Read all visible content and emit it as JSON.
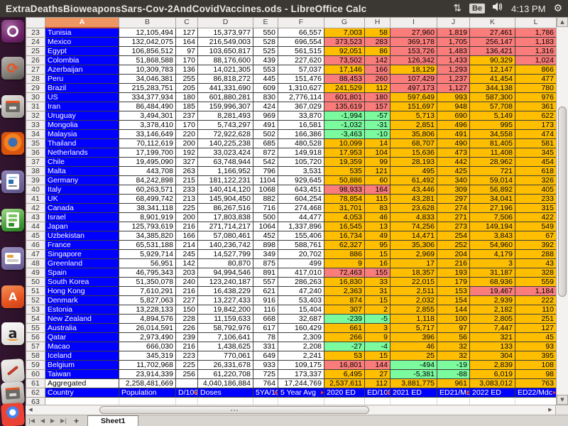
{
  "top_panel": {
    "title": "ExtraDeathsBioweaponsSars-Cov-2AndCovidVaccines.ods - LibreOffice Calc",
    "sync_arrows": "⇅",
    "keyboard_badge": "Be",
    "time": "4:13 PM",
    "session_gear": "⚙"
  },
  "launcher": {
    "items": [
      {
        "name": "ubuntu-dash"
      },
      {
        "name": "software-updater"
      },
      {
        "name": "file-manager",
        "running": true
      },
      {
        "name": "firefox"
      },
      {
        "name": "libreoffice-writer",
        "running": true
      },
      {
        "name": "libreoffice-calc",
        "running": true,
        "active": true
      },
      {
        "name": "libreoffice-impress"
      },
      {
        "name": "ubuntu-software-center"
      },
      {
        "name": "amazon"
      },
      {
        "name": "document-annotate"
      },
      {
        "name": "calculator"
      },
      {
        "name": "chrome"
      }
    ]
  },
  "colors": {
    "country_blue": "#0000FF",
    "warn_yellow": "#FFBF00",
    "alert_red": "#FB7D7B",
    "ok_green": "#7BFA9E",
    "selected_col_header": "#EE9663"
  },
  "sheet": {
    "selected_column": "A",
    "columns": [
      "A",
      "B",
      "C",
      "D",
      "E",
      "F",
      "G",
      "H",
      "I",
      "J",
      "K",
      "L"
    ],
    "rows": [
      {
        "n": "23",
        "colors": "bwwwwwyyrrrr",
        "cells": [
          "Tunisia",
          "12,105,494",
          "127",
          "15,373,977",
          "550",
          "66,557",
          "7,003",
          "58",
          "27,960",
          "1,819",
          "27,461",
          "1,786"
        ]
      },
      {
        "n": "24",
        "colors": "bwwwwwrrrrrr",
        "cells": [
          "Mexico",
          "132,042,075",
          "164",
          "216,549,003",
          "528",
          "696,554",
          "373,523",
          "283",
          "369,178",
          "1,705",
          "256,147",
          "1,183"
        ]
      },
      {
        "n": "25",
        "colors": "bwwwwwyyrrrr",
        "cells": [
          "Egypt",
          "106,856,512",
          "97",
          "103,650,817",
          "525",
          "561,515",
          "92,051",
          "86",
          "153,726",
          "1,483",
          "136,421",
          "1,316"
        ]
      },
      {
        "n": "26",
        "colors": "bwwwwwrrrryr",
        "cells": [
          "Colombia",
          "51,868,588",
          "170",
          "88,176,600",
          "439",
          "227,620",
          "73,502",
          "142",
          "126,342",
          "1,433",
          "90,329",
          "1,024"
        ]
      },
      {
        "n": "27",
        "colors": "bwwwwwyryryy",
        "cells": [
          "Azerbaijan",
          "10,309,783",
          "136",
          "14,021,305",
          "553",
          "57,037",
          "17,146",
          "166",
          "18,129",
          "1,293",
          "12,147",
          "866"
        ]
      },
      {
        "n": "28",
        "colors": "bwwwwwrrrryy",
        "cells": [
          "Peru",
          "34,046,381",
          "255",
          "86,818,272",
          "445",
          "151,476",
          "88,453",
          "260",
          "107,429",
          "1,237",
          "41,454",
          "477"
        ]
      },
      {
        "n": "29",
        "colors": "bwwwwwyyrryy",
        "cells": [
          "Brazil",
          "215,283,751",
          "205",
          "441,331,690",
          "609",
          "1,310,627",
          "241,529",
          "112",
          "497,173",
          "1,127",
          "344,138",
          "780"
        ]
      },
      {
        "n": "30",
        "colors": "bwwwwwrryyyy",
        "cells": [
          "US",
          "334,377,934",
          "180",
          "601,880,281",
          "830",
          "2,776,114",
          "601,801",
          "180",
          "597,649",
          "993",
          "587,300",
          "976"
        ]
      },
      {
        "n": "31",
        "colors": "bwwwwwrryyyy",
        "cells": [
          "Iran",
          "86,484,490",
          "185",
          "159,996,307",
          "424",
          "367,029",
          "135,619",
          "157",
          "151,697",
          "948",
          "57,708",
          "361"
        ]
      },
      {
        "n": "32",
        "colors": "bwwwwwggyyyy",
        "cells": [
          "Uruguay",
          "3,494,301",
          "237",
          "8,281,493",
          "969",
          "33,870",
          "-1,994",
          "-57",
          "5,713",
          "690",
          "5,149",
          "622"
        ]
      },
      {
        "n": "33",
        "colors": "bwwwwwggyyyy",
        "cells": [
          "Mongolia",
          "3,378,410",
          "170",
          "5,743,297",
          "491",
          "16,581",
          "-1,032",
          "-31",
          "2,851",
          "496",
          "995",
          "173"
        ]
      },
      {
        "n": "34",
        "colors": "bwwwwwggyyyy",
        "cells": [
          "Malaysia",
          "33,146,649",
          "220",
          "72,922,628",
          "502",
          "166,386",
          "-3,463",
          "-10",
          "35,806",
          "491",
          "34,558",
          "474"
        ]
      },
      {
        "n": "35",
        "colors": "bwwwwwyyyyyy",
        "cells": [
          "Thailand",
          "70,112,619",
          "200",
          "140,225,238",
          "685",
          "480,528",
          "10,099",
          "14",
          "68,707",
          "490",
          "81,405",
          "581"
        ]
      },
      {
        "n": "36",
        "colors": "bwwwwwyyyyyy",
        "cells": [
          "Netherlands",
          "17,199,700",
          "192",
          "33,023,424",
          "872",
          "149,918",
          "17,953",
          "104",
          "15,636",
          "473",
          "11,408",
          "345"
        ]
      },
      {
        "n": "37",
        "colors": "bwwwwwyyyyyy",
        "cells": [
          "Chile",
          "19,495,090",
          "327",
          "63,748,944",
          "542",
          "105,720",
          "19,359",
          "99",
          "28,193",
          "442",
          "28,962",
          "454"
        ]
      },
      {
        "n": "38",
        "colors": "bwwwwwyyyyyy",
        "cells": [
          "Malta",
          "443,708",
          "263",
          "1,166,952",
          "796",
          "3,531",
          "535",
          "121",
          "495",
          "425",
          "721",
          "618"
        ]
      },
      {
        "n": "39",
        "colors": "bwwwwwyyyyyy",
        "cells": [
          "Germany",
          "84,242,898",
          "215",
          "181,122,231",
          "1104",
          "929,645",
          "50,886",
          "60",
          "61,492",
          "340",
          "59,014",
          "326"
        ]
      },
      {
        "n": "40",
        "colors": "bwwwwwrryyyy",
        "cells": [
          "Italy",
          "60,263,571",
          "233",
          "140,414,120",
          "1068",
          "643,451",
          "98,933",
          "164",
          "43,446",
          "309",
          "56,892",
          "405"
        ]
      },
      {
        "n": "41",
        "colors": "bwwwwwyyyyyy",
        "cells": [
          "UK",
          "68,499,742",
          "213",
          "145,904,450",
          "882",
          "604,254",
          "78,854",
          "115",
          "43,281",
          "297",
          "34,041",
          "233"
        ]
      },
      {
        "n": "42",
        "colors": "bwwwwwyyyyyy",
        "cells": [
          "Canada",
          "38,341,118",
          "225",
          "86,267,516",
          "716",
          "274,468",
          "31,701",
          "83",
          "23,628",
          "274",
          "27,196",
          "315"
        ]
      },
      {
        "n": "43",
        "colors": "bwwwwwyyyyyy",
        "cells": [
          "Israel",
          "8,901,919",
          "200",
          "17,803,838",
          "500",
          "44,477",
          "4,053",
          "46",
          "4,833",
          "271",
          "7,506",
          "422"
        ]
      },
      {
        "n": "44",
        "colors": "bwwwwwyyyyyy",
        "cells": [
          "Japan",
          "125,793,619",
          "216",
          "271,714,217",
          "1064",
          "1,337,896",
          "16,545",
          "13",
          "74,256",
          "273",
          "149,194",
          "549"
        ]
      },
      {
        "n": "45",
        "colors": "bwwwwwyyyyyy",
        "cells": [
          "Uzbekistan",
          "34,385,820",
          "166",
          "57,080,461",
          "452",
          "155,406",
          "16,734",
          "49",
          "14,471",
          "254",
          "3,843",
          "67"
        ]
      },
      {
        "n": "46",
        "colors": "bwwwwwyyyyyy",
        "cells": [
          "France",
          "65,531,188",
          "214",
          "140,236,742",
          "898",
          "588,761",
          "62,327",
          "95",
          "35,306",
          "252",
          "54,960",
          "392"
        ]
      },
      {
        "n": "47",
        "colors": "bwwwwwyyyyyy",
        "cells": [
          "Singapore",
          "5,929,714",
          "245",
          "14,527,799",
          "349",
          "20,702",
          "886",
          "15",
          "2,969",
          "204",
          "4,179",
          "288"
        ]
      },
      {
        "n": "48",
        "colors": "bwwwwwyyyyyy",
        "cells": [
          "Greenland",
          "56,951",
          "142",
          "80,870",
          "875",
          "499",
          "9",
          "16",
          "17",
          "216",
          "3",
          "43"
        ]
      },
      {
        "n": "49",
        "colors": "bwwwwwrryyyy",
        "cells": [
          "Spain",
          "46,795,343",
          "203",
          "94,994,546",
          "891",
          "417,010",
          "72,463",
          "155",
          "18,357",
          "193",
          "31,187",
          "328"
        ]
      },
      {
        "n": "50",
        "colors": "bwwwwwyyyyyy",
        "cells": [
          "South Korea",
          "51,350,078",
          "240",
          "123,240,187",
          "557",
          "286,263",
          "16,830",
          "33",
          "22,015",
          "179",
          "68,936",
          "559"
        ]
      },
      {
        "n": "51",
        "colors": "bwwwwwyyyyrr",
        "cells": [
          "Hong Kong",
          "7,610,291",
          "216",
          "16,438,229",
          "621",
          "47,240",
          "2,363",
          "31",
          "2,511",
          "153",
          "19,467",
          "1,184"
        ]
      },
      {
        "n": "52",
        "colors": "bwwwwwyyyyyy",
        "cells": [
          "Denmark",
          "5,827,063",
          "227",
          "13,227,433",
          "916",
          "53,403",
          "874",
          "15",
          "2,032",
          "154",
          "2,939",
          "222"
        ]
      },
      {
        "n": "53",
        "colors": "bwwwwwyyyyyy",
        "cells": [
          "Estonia",
          "13,228,133",
          "150",
          "19,842,200",
          "116",
          "15,404",
          "307",
          "2",
          "2,855",
          "144",
          "2,182",
          "110"
        ]
      },
      {
        "n": "54",
        "colors": "bwwwwwggyyyy",
        "cells": [
          "New Zealand",
          "4,894,576",
          "228",
          "11,159,633",
          "668",
          "32,687",
          "-239",
          "-5",
          "1,118",
          "100",
          "2,805",
          "251"
        ]
      },
      {
        "n": "55",
        "colors": "bwwwwwyyyyyy",
        "cells": [
          "Australia",
          "26,014,591",
          "226",
          "58,792,976",
          "617",
          "160,429",
          "661",
          "3",
          "5,717",
          "97",
          "7,447",
          "127"
        ]
      },
      {
        "n": "56",
        "colors": "bwwwwwyyyyyy",
        "cells": [
          "Qatar",
          "2,973,490",
          "239",
          "7,106,641",
          "78",
          "2,309",
          "266",
          "9",
          "396",
          "56",
          "321",
          "45"
        ]
      },
      {
        "n": "57",
        "colors": "bwwwwwggyyyy",
        "cells": [
          "Macao",
          "666,030",
          "216",
          "1,438,625",
          "331",
          "2,208",
          "-27",
          "-4",
          "46",
          "32",
          "133",
          "93"
        ]
      },
      {
        "n": "58",
        "colors": "bwwwwwyyyyyy",
        "cells": [
          "Iceland",
          "345,319",
          "223",
          "770,061",
          "649",
          "2,241",
          "53",
          "15",
          "25",
          "32",
          "304",
          "395"
        ]
      },
      {
        "n": "59",
        "colors": "bwwwwwrrggyy",
        "cells": [
          "Belgium",
          "11,702,968",
          "225",
          "26,331,678",
          "933",
          "109,175",
          "16,801",
          "144",
          "-494",
          "-19",
          "2,839",
          "108"
        ]
      },
      {
        "n": "60",
        "colors": "bwwwwwyyggyy",
        "cells": [
          "Taiwan",
          "23,914,339",
          "256",
          "61,220,708",
          "725",
          "173,337",
          "6,495",
          "27",
          "-5,381",
          "-88",
          "6,019",
          "98"
        ]
      },
      {
        "n": "61",
        "colors": "wwwwwwyyyyyy",
        "cells": [
          "Aggregated",
          "2,258,481,669",
          "",
          "4,040,186,884",
          "764",
          "17,244,769",
          "2,537,611",
          "112",
          "3,881,775",
          "961",
          "3,083,012",
          "763"
        ]
      },
      {
        "n": "62",
        "colors": "bbbbbbbbbbbb",
        "header": true,
        "trunc": [
          2,
          4,
          5,
          7,
          9,
          11
        ],
        "cells": [
          "Country",
          "Population",
          "D/100P",
          "Doses",
          "5YA/100K",
          "5 Year Avg",
          "2020 ED",
          "ED/100K",
          "2021 ED",
          "ED21/Mdc",
          "2022 ED",
          "ED22/Mdc"
        ]
      },
      {
        "n": "63",
        "colors": "wwwwwwwwwwww",
        "empty": true,
        "cells": [
          "",
          "",
          "",
          "",
          "",
          "",
          "",
          "",
          "",
          "",
          "",
          ""
        ]
      }
    ]
  },
  "scrollbars": {
    "v_up": "▲",
    "v_down": "▼",
    "h_left": "◀",
    "h_right": "▶"
  },
  "tab_bar": {
    "nav_first": "|◀",
    "nav_prev": "◀",
    "nav_next": "▶",
    "nav_last": "▶|",
    "add_sheet": "+",
    "sheet_name": "Sheet1"
  }
}
